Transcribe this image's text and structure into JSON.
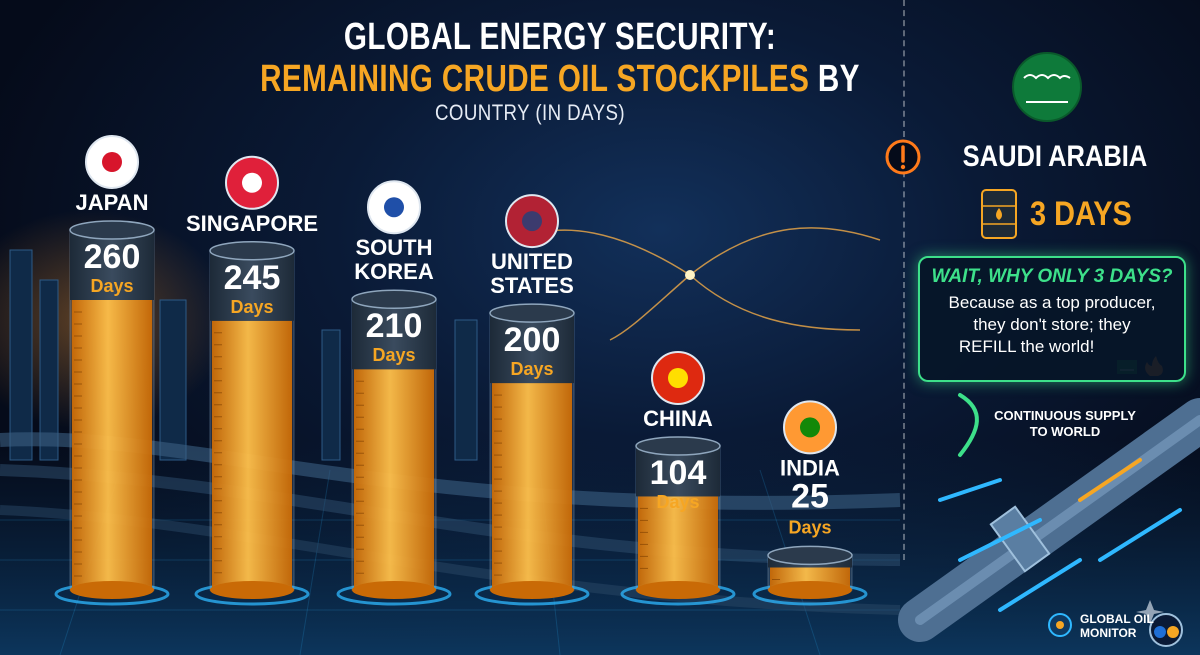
{
  "title": {
    "line1": "GLOBAL ENERGY SECURITY:",
    "line2_highlight": "REMAINING CRUDE OIL STOCKPILES",
    "line2_rest": "BY",
    "line3": "COUNTRY (IN DAYS)"
  },
  "chart_data": {
    "type": "bar",
    "title": "GLOBAL ENERGY SECURITY: REMAINING CRUDE OIL STOCKPILES BY COUNTRY (IN DAYS)",
    "unit_label": "Days",
    "categories": [
      "JAPAN",
      "SINGAPORE",
      "SOUTH KOREA",
      "UNITED STATES",
      "CHINA",
      "INDIA"
    ],
    "values": [
      260,
      245,
      210,
      200,
      104,
      25
    ],
    "ylim": [
      0,
      260
    ],
    "grid": false,
    "legend": "none"
  },
  "callout": {
    "country": "SAUDI ARABIA",
    "value": 3,
    "days_text": "3 DAYS",
    "question": "WAIT, WHY ONLY 3 DAYS?",
    "line1": "Because as a top producer,",
    "line2": "they don't store; they",
    "refill_word": "REFILL",
    "line3_rest": "the world!",
    "supply_line1": "CONTINUOUS SUPPLY",
    "supply_line2": "TO WORLD"
  },
  "branding": {
    "line1": "GLOBAL OIL",
    "line2": "MONITOR"
  },
  "colors": {
    "oil": "#f6a623",
    "oil_deep": "#c96a06",
    "accent_green": "#3de08a",
    "glow_blue": "#2fb8ff",
    "alert": "#ff7a1a"
  }
}
